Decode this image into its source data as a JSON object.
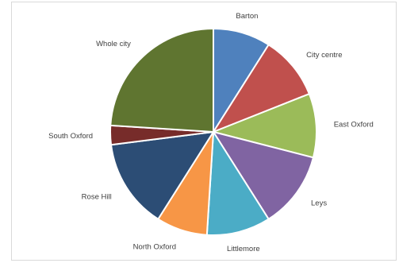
{
  "chart_data": {
    "type": "pie",
    "title": "",
    "legend": "none",
    "start_angle_deg": 0,
    "slices": [
      {
        "label": "Barton",
        "value": 9.0,
        "color": "#4F81BD"
      },
      {
        "label": "City centre",
        "value": 10.0,
        "color": "#C0504D"
      },
      {
        "label": "East Oxford",
        "value": 10.0,
        "color": "#9BBB59"
      },
      {
        "label": "Leys",
        "value": 12.0,
        "color": "#8064A2"
      },
      {
        "label": "Littlemore",
        "value": 10.0,
        "color": "#4BACC6"
      },
      {
        "label": "North Oxford",
        "value": 8.0,
        "color": "#F79646"
      },
      {
        "label": "Rose Hill",
        "value": 14.0,
        "color": "#2C4D75"
      },
      {
        "label": "South Oxford",
        "value": 3.0,
        "color": "#772C2A"
      },
      {
        "label": "Whole city",
        "value": 24.0,
        "color": "#5F7530"
      }
    ]
  }
}
